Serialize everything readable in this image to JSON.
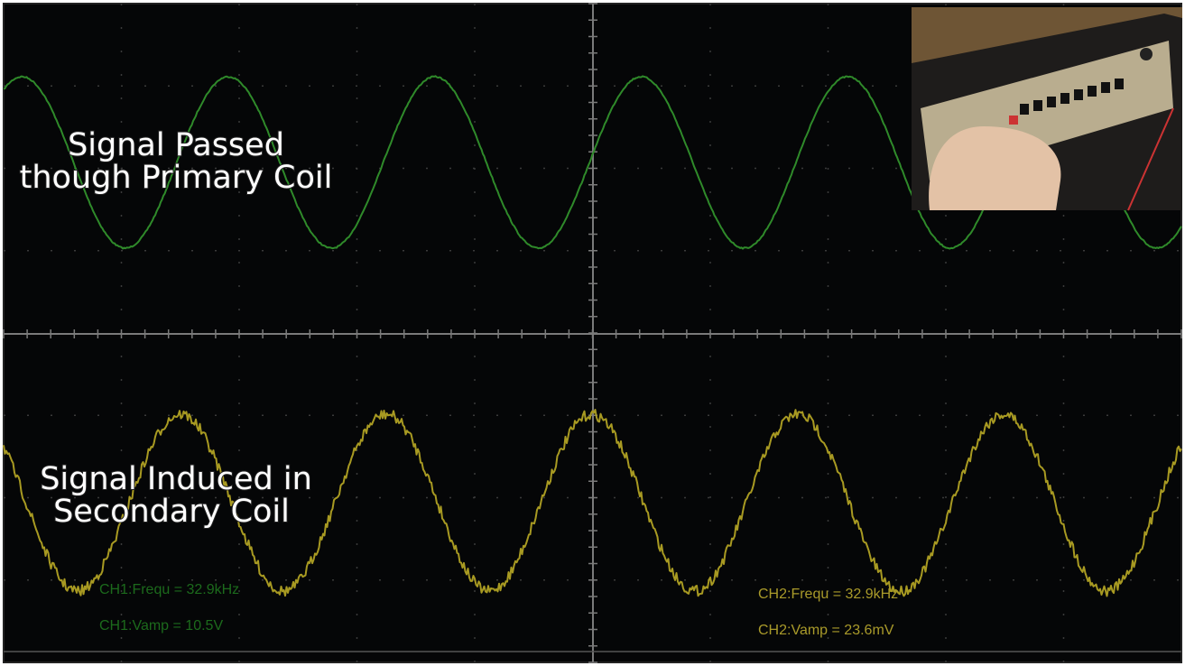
{
  "overlay": {
    "top_caption": [
      "Signal Passed",
      "though Primary Coil"
    ],
    "bottom_caption": [
      "Signal Induced in",
      "Secondary Coil"
    ]
  },
  "readouts": {
    "ch1": [
      "CH1:Frequ = 32.9kHz",
      "CH1:Vamp = 10.5V"
    ],
    "ch2": [
      "CH2:Frequ = 32.9kHz",
      "CH2:Vamp = 23.6mV"
    ]
  }
}
